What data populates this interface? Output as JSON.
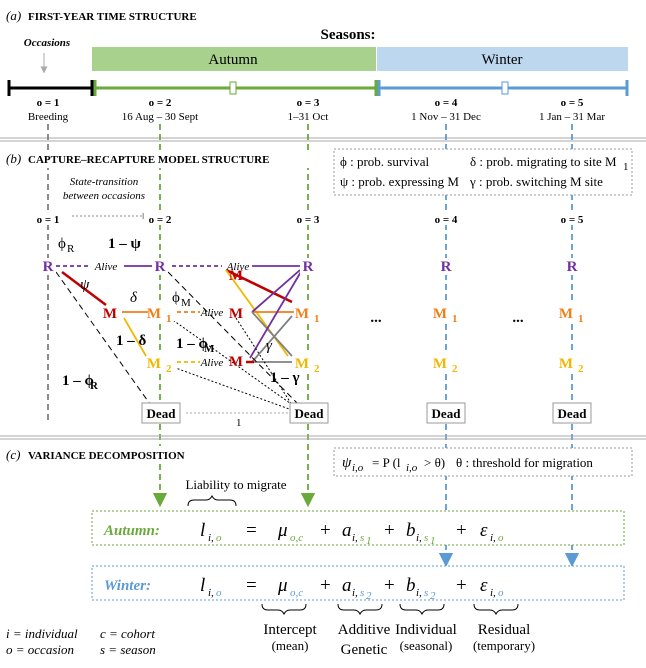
{
  "panel_a": {
    "tag": "(a)",
    "title": "FIRST-YEAR TIME STRUCTURE",
    "occasions_label": "Occasions",
    "seasons_label": "Seasons:",
    "season_autumn": "Autumn",
    "season_winter": "Winter",
    "occasions": [
      {
        "label": "o = 1",
        "period": "Breeding"
      },
      {
        "label": "o = 2",
        "period": "16 Aug – 30 Sept"
      },
      {
        "label": "o = 3",
        "period": "1–31 Oct"
      },
      {
        "label": "o = 4",
        "period": "1 Nov – 31 Dec"
      },
      {
        "label": "o = 5",
        "period": "1 Jan – 31 Mar"
      }
    ]
  },
  "panel_b": {
    "tag": "(b)",
    "title": "CAPTURE–RECAPTURE MODEL STRUCTURE",
    "state_transition_1": "State-transition",
    "state_transition_2": "between occasions",
    "legend": {
      "phi": "ϕ : prob. survival",
      "delta": "δ : prob. migrating to site M",
      "delta_sub": "1",
      "psi": "ψ : prob. expressing M",
      "gamma": "γ : prob. switching M site"
    },
    "occasion_labels": [
      "o = 1",
      "o = 2",
      "o = 3",
      "o = 4",
      "o = 5"
    ],
    "states": {
      "R": "R",
      "M": "M",
      "M1": "M",
      "M1_sub": "1",
      "M2": "M",
      "M2_sub": "2",
      "dead": "Dead"
    },
    "alive": "Alive",
    "ellipsis": "...",
    "params": {
      "phi_R": "ϕ",
      "phi_R_sub": "R",
      "one_minus_psi": "1 – ψ",
      "psi": "ψ",
      "delta": "δ",
      "one_minus_delta": "1 – δ",
      "one_minus_phi_R": "1 – ϕ",
      "phi_M": "ϕ",
      "phi_M_sub": "M",
      "one_minus_phi_M": "1 – ϕ",
      "gamma": "γ",
      "one_minus_gamma": "1 – γ",
      "dead_to_dead": "1"
    },
    "colors": {
      "R": "#7030a0",
      "M": "#c00000",
      "M1": "#f07f1a",
      "M2": "#f0b800",
      "switch": "#808080"
    }
  },
  "panel_c": {
    "tag": "(c)",
    "title": "VARIANCE DECOMPOSITION",
    "threshold_psi": "ψ",
    "threshold_psi_sub": "i,o",
    "threshold_eq": "= P (l",
    "threshold_eq_sub": "i,o",
    "threshold_eq_end": "> θ)",
    "threshold_text": "θ : threshold for migration",
    "liability_label": "Liability to migrate",
    "rows": [
      {
        "name": "Autumn:",
        "season_sub": "1",
        "color": "#6aaa3a"
      },
      {
        "name": "Winter:",
        "season_sub": "2",
        "color": "#5b9bd5"
      }
    ],
    "eq": {
      "l": "l",
      "mu": "μ",
      "mu_sub": "o,c",
      "a": "a",
      "b": "b",
      "eps": "ε",
      "i": "i,",
      "o": "o",
      "s": "s"
    },
    "key": {
      "i": "i = individual",
      "c": "c = cohort",
      "o": "o = occasion",
      "s": "s = season"
    },
    "components": [
      {
        "line1": "Intercept",
        "line2": "(mean)"
      },
      {
        "line1": "Additive",
        "line2": "Genetic"
      },
      {
        "line1": "Individual",
        "line2": "(seasonal)"
      },
      {
        "line1": "Residual",
        "line2": "(temporary)"
      }
    ]
  }
}
